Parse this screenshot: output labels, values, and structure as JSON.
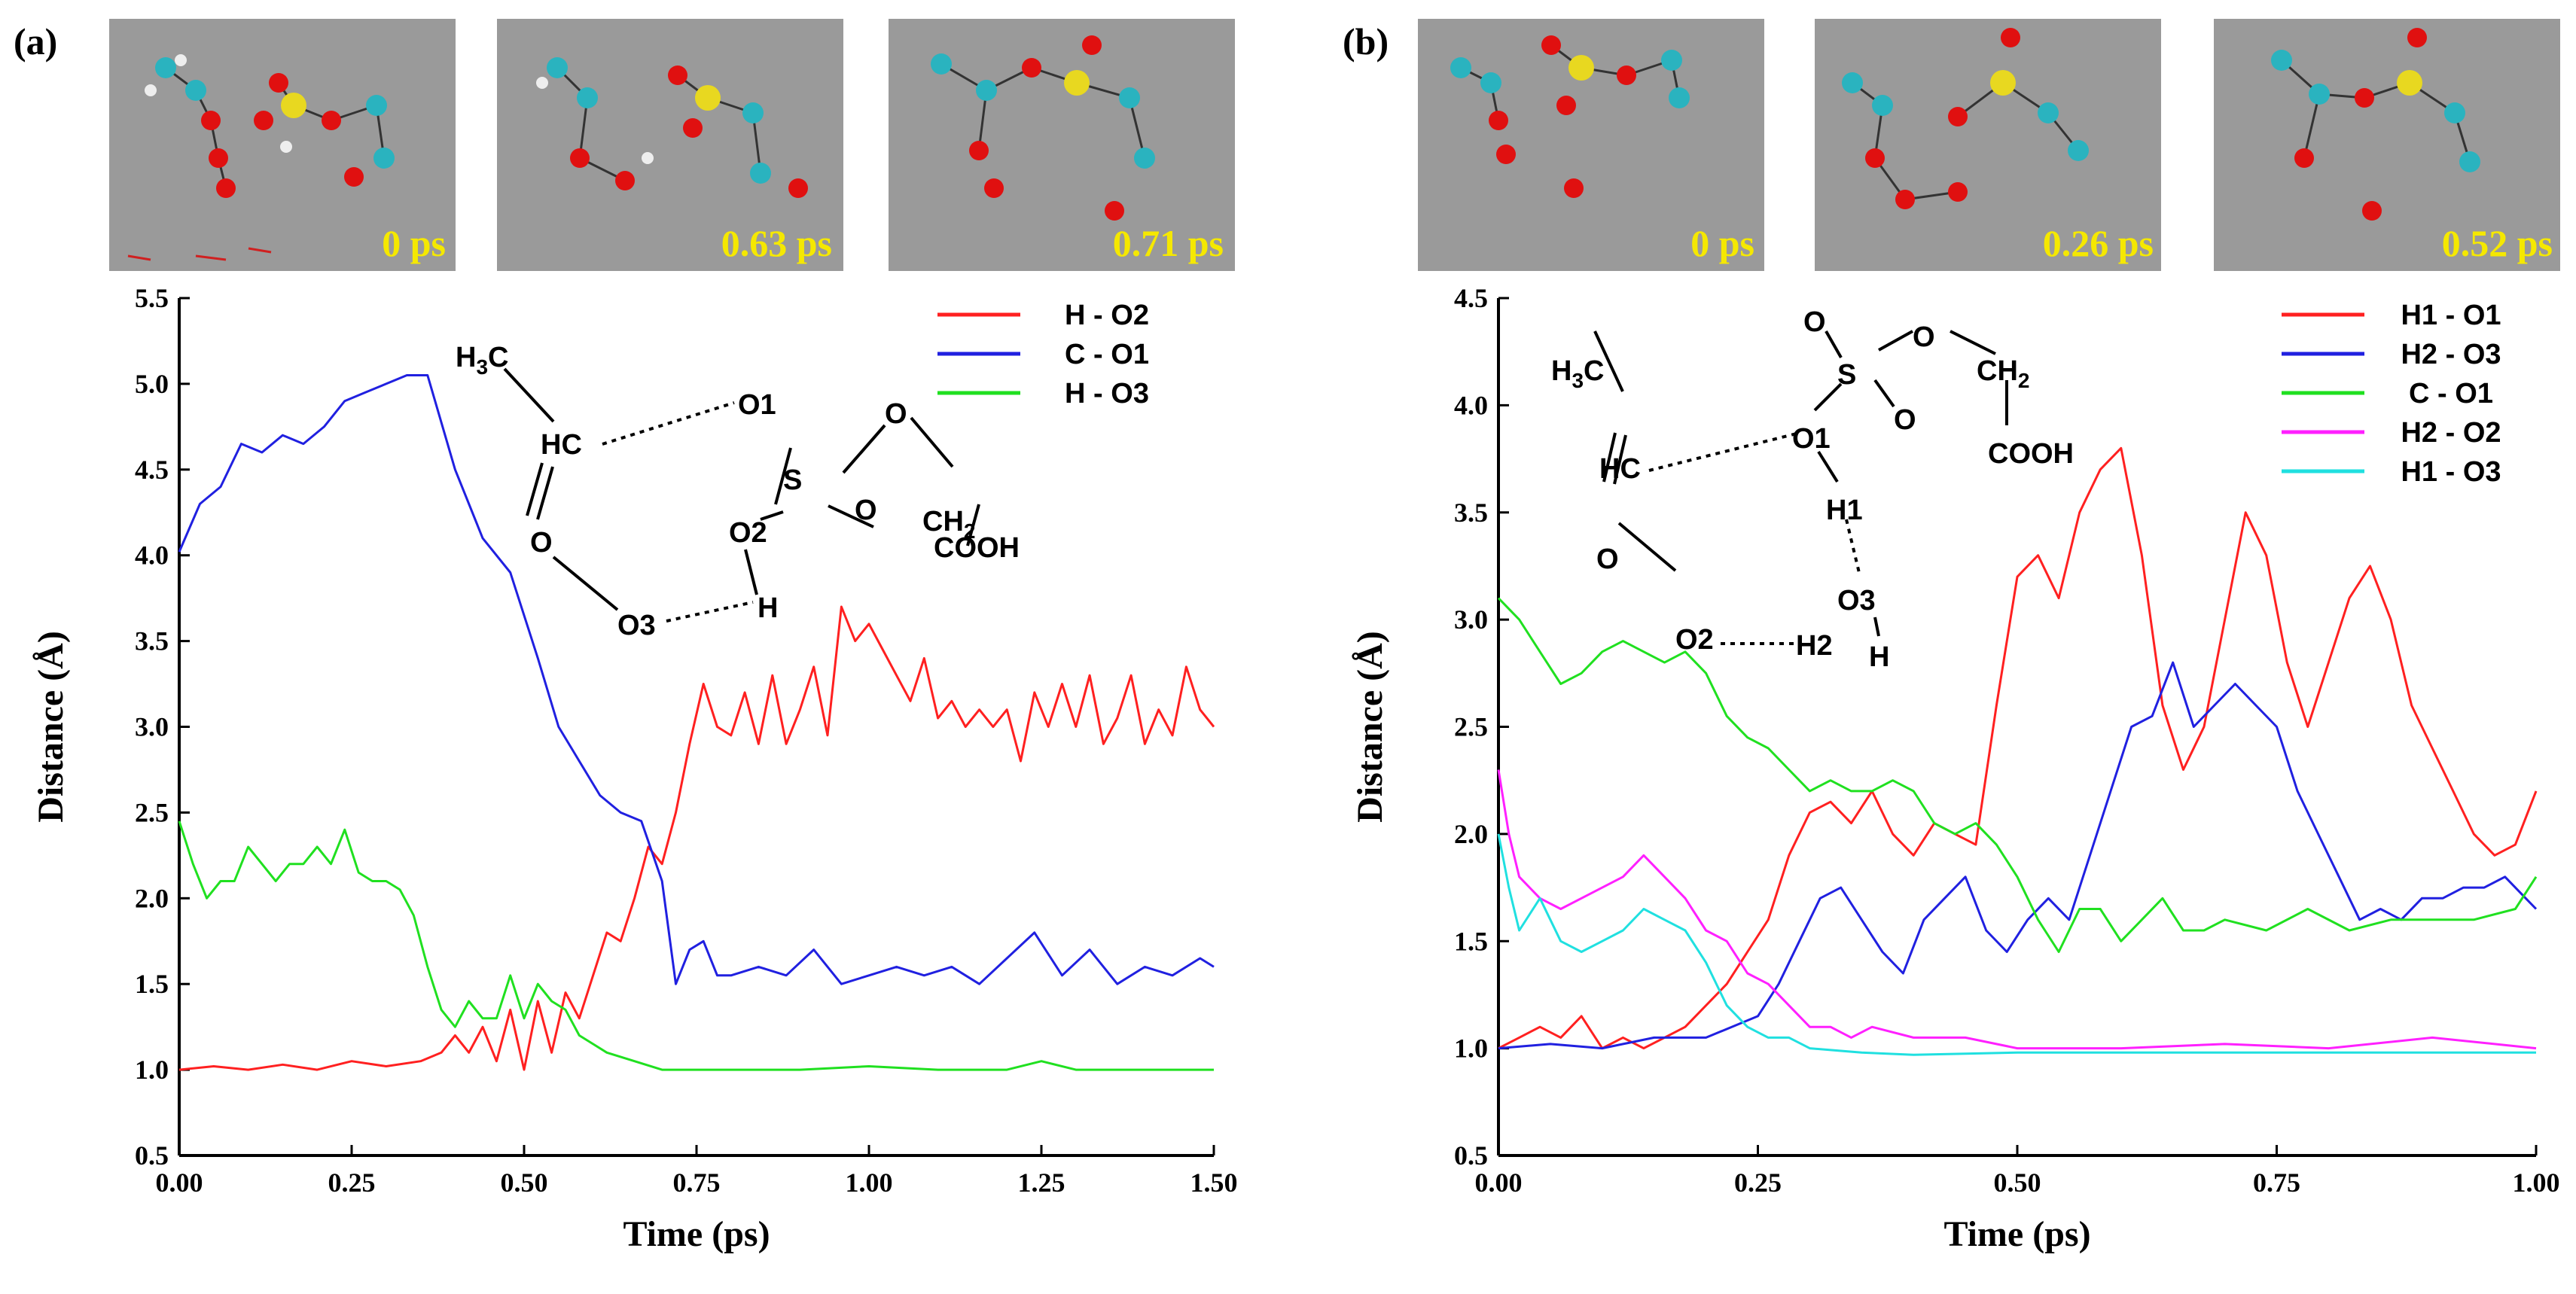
{
  "panels": [
    {
      "id": "a",
      "label": "(a)",
      "snapshots": [
        {
          "time": "0 ps"
        },
        {
          "time": "0.63 ps"
        },
        {
          "time": "0.71 ps"
        }
      ],
      "scheme": {
        "texts": [
          "H3C",
          "HC",
          "O",
          "O3",
          "O2",
          "H",
          "O1",
          "S",
          "O",
          "O",
          "CH2",
          "COOH"
        ]
      }
    },
    {
      "id": "b",
      "label": "(b)",
      "snapshots": [
        {
          "time": "0 ps"
        },
        {
          "time": "0.26 ps"
        },
        {
          "time": "0.52 ps"
        }
      ],
      "scheme": {
        "texts": [
          "H3C",
          "HC",
          "O",
          "O2",
          "H2",
          "O3",
          "H",
          "H1",
          "O1",
          "S",
          "O",
          "O",
          "O",
          "CH2",
          "COOH"
        ]
      }
    }
  ],
  "chart_data": [
    {
      "type": "line",
      "panel": "(a)",
      "xlabel": "Time (ps)",
      "ylabel": "Distance (Å)",
      "xlim": [
        0,
        1.5
      ],
      "ylim": [
        0.5,
        5.5
      ],
      "xticks": [
        "0.00",
        "0.25",
        "0.50",
        "0.75",
        "1.00",
        "1.25",
        "1.50"
      ],
      "yticks": [
        "0.5",
        "1.0",
        "1.5",
        "2.0",
        "2.5",
        "3.0",
        "3.5",
        "4.0",
        "4.5",
        "5.0",
        "5.5"
      ],
      "legend_position": "top-right",
      "series": [
        {
          "name": "H - O2",
          "color": "#ff2020",
          "x": [
            0,
            0.05,
            0.1,
            0.15,
            0.2,
            0.25,
            0.3,
            0.35,
            0.38,
            0.4,
            0.42,
            0.44,
            0.46,
            0.48,
            0.5,
            0.52,
            0.54,
            0.56,
            0.58,
            0.6,
            0.62,
            0.64,
            0.66,
            0.68,
            0.7,
            0.72,
            0.74,
            0.76,
            0.78,
            0.8,
            0.82,
            0.84,
            0.86,
            0.88,
            0.9,
            0.92,
            0.94,
            0.96,
            0.98,
            1.0,
            1.02,
            1.04,
            1.06,
            1.08,
            1.1,
            1.12,
            1.14,
            1.16,
            1.18,
            1.2,
            1.22,
            1.24,
            1.26,
            1.28,
            1.3,
            1.32,
            1.34,
            1.36,
            1.38,
            1.4,
            1.42,
            1.44,
            1.46,
            1.48,
            1.5
          ],
          "values": [
            1.0,
            1.02,
            1.0,
            1.03,
            1.0,
            1.05,
            1.02,
            1.05,
            1.1,
            1.2,
            1.1,
            1.25,
            1.05,
            1.35,
            1.0,
            1.4,
            1.1,
            1.45,
            1.3,
            1.55,
            1.8,
            1.75,
            2.0,
            2.3,
            2.2,
            2.5,
            2.9,
            3.25,
            3.0,
            2.95,
            3.2,
            2.9,
            3.3,
            2.9,
            3.1,
            3.35,
            2.95,
            3.7,
            3.5,
            3.6,
            3.45,
            3.3,
            3.15,
            3.4,
            3.05,
            3.15,
            3.0,
            3.1,
            3.0,
            3.1,
            2.8,
            3.2,
            3.0,
            3.25,
            3.0,
            3.3,
            2.9,
            3.05,
            3.3,
            2.9,
            3.1,
            2.95,
            3.35,
            3.1,
            3.0
          ]
        },
        {
          "name": "C - O1",
          "color": "#2020e0",
          "x": [
            0,
            0.03,
            0.06,
            0.09,
            0.12,
            0.15,
            0.18,
            0.21,
            0.24,
            0.27,
            0.3,
            0.33,
            0.36,
            0.4,
            0.44,
            0.48,
            0.52,
            0.55,
            0.58,
            0.61,
            0.64,
            0.67,
            0.7,
            0.72,
            0.74,
            0.76,
            0.78,
            0.8,
            0.84,
            0.88,
            0.92,
            0.96,
            1.0,
            1.04,
            1.08,
            1.12,
            1.16,
            1.2,
            1.24,
            1.28,
            1.32,
            1.36,
            1.4,
            1.44,
            1.48,
            1.5
          ],
          "values": [
            4.02,
            4.3,
            4.4,
            4.65,
            4.6,
            4.7,
            4.65,
            4.75,
            4.9,
            4.95,
            5.0,
            5.05,
            5.05,
            4.5,
            4.1,
            3.9,
            3.4,
            3.0,
            2.8,
            2.6,
            2.5,
            2.45,
            2.1,
            1.5,
            1.7,
            1.75,
            1.55,
            1.55,
            1.6,
            1.55,
            1.7,
            1.5,
            1.55,
            1.6,
            1.55,
            1.6,
            1.5,
            1.65,
            1.8,
            1.55,
            1.7,
            1.5,
            1.6,
            1.55,
            1.65,
            1.6
          ]
        },
        {
          "name": "H - O3",
          "color": "#20e020",
          "x": [
            0,
            0.02,
            0.04,
            0.06,
            0.08,
            0.1,
            0.12,
            0.14,
            0.16,
            0.18,
            0.2,
            0.22,
            0.24,
            0.26,
            0.28,
            0.3,
            0.32,
            0.34,
            0.36,
            0.38,
            0.4,
            0.42,
            0.44,
            0.46,
            0.48,
            0.5,
            0.52,
            0.54,
            0.56,
            0.58,
            0.6,
            0.62,
            0.66,
            0.7,
            0.75,
            0.8,
            0.9,
            1.0,
            1.1,
            1.2,
            1.25,
            1.3,
            1.4,
            1.5
          ],
          "values": [
            2.45,
            2.2,
            2.0,
            2.1,
            2.1,
            2.3,
            2.2,
            2.1,
            2.2,
            2.2,
            2.3,
            2.2,
            2.4,
            2.15,
            2.1,
            2.1,
            2.05,
            1.9,
            1.6,
            1.35,
            1.25,
            1.4,
            1.3,
            1.3,
            1.55,
            1.3,
            1.5,
            1.4,
            1.35,
            1.2,
            1.15,
            1.1,
            1.05,
            1.0,
            1.0,
            1.0,
            1.0,
            1.02,
            1.0,
            1.0,
            1.05,
            1.0,
            1.0,
            1.0
          ]
        }
      ]
    },
    {
      "type": "line",
      "panel": "(b)",
      "xlabel": "Time (ps)",
      "ylabel": "Distance (Å)",
      "xlim": [
        0,
        1.0
      ],
      "ylim": [
        0.5,
        4.5
      ],
      "xticks": [
        "0.00",
        "0.25",
        "0.50",
        "0.75",
        "1.00"
      ],
      "yticks": [
        "0.5",
        "1.0",
        "1.5",
        "2.0",
        "2.5",
        "3.0",
        "3.5",
        "4.0",
        "4.5"
      ],
      "legend_position": "top-right",
      "series": [
        {
          "name": "H1 - O1",
          "color": "#ff2020",
          "x": [
            0,
            0.02,
            0.04,
            0.06,
            0.08,
            0.1,
            0.12,
            0.14,
            0.16,
            0.18,
            0.2,
            0.22,
            0.24,
            0.26,
            0.28,
            0.3,
            0.32,
            0.34,
            0.36,
            0.38,
            0.4,
            0.42,
            0.44,
            0.46,
            0.48,
            0.5,
            0.52,
            0.54,
            0.56,
            0.58,
            0.6,
            0.62,
            0.64,
            0.66,
            0.68,
            0.7,
            0.72,
            0.74,
            0.76,
            0.78,
            0.8,
            0.82,
            0.84,
            0.86,
            0.88,
            0.9,
            0.92,
            0.94,
            0.96,
            0.98,
            1.0
          ],
          "values": [
            1.0,
            1.05,
            1.1,
            1.05,
            1.15,
            1.0,
            1.05,
            1.0,
            1.05,
            1.1,
            1.2,
            1.3,
            1.45,
            1.6,
            1.9,
            2.1,
            2.15,
            2.05,
            2.2,
            2.0,
            1.9,
            2.05,
            2.0,
            1.95,
            2.6,
            3.2,
            3.3,
            3.1,
            3.5,
            3.7,
            3.8,
            3.3,
            2.6,
            2.3,
            2.5,
            3.0,
            3.5,
            3.3,
            2.8,
            2.5,
            2.8,
            3.1,
            3.25,
            3.0,
            2.6,
            2.4,
            2.2,
            2.0,
            1.9,
            1.95,
            2.2
          ]
        },
        {
          "name": "H2 - O3",
          "color": "#2020e0",
          "x": [
            0,
            0.05,
            0.1,
            0.15,
            0.2,
            0.25,
            0.27,
            0.29,
            0.31,
            0.33,
            0.35,
            0.37,
            0.39,
            0.41,
            0.43,
            0.45,
            0.47,
            0.49,
            0.51,
            0.53,
            0.55,
            0.57,
            0.59,
            0.61,
            0.63,
            0.65,
            0.67,
            0.69,
            0.71,
            0.73,
            0.75,
            0.77,
            0.79,
            0.81,
            0.83,
            0.85,
            0.87,
            0.89,
            0.91,
            0.93,
            0.95,
            0.97,
            0.99,
            1.0
          ],
          "values": [
            1.0,
            1.02,
            1.0,
            1.05,
            1.05,
            1.15,
            1.3,
            1.5,
            1.7,
            1.75,
            1.6,
            1.45,
            1.35,
            1.6,
            1.7,
            1.8,
            1.55,
            1.45,
            1.6,
            1.7,
            1.6,
            1.9,
            2.2,
            2.5,
            2.55,
            2.8,
            2.5,
            2.6,
            2.7,
            2.6,
            2.5,
            2.2,
            2.0,
            1.8,
            1.6,
            1.65,
            1.6,
            1.7,
            1.7,
            1.75,
            1.75,
            1.8,
            1.7,
            1.65
          ]
        },
        {
          "name": "C - O1",
          "color": "#20e020",
          "x": [
            0,
            0.02,
            0.04,
            0.06,
            0.08,
            0.1,
            0.12,
            0.14,
            0.16,
            0.18,
            0.2,
            0.22,
            0.24,
            0.26,
            0.28,
            0.3,
            0.32,
            0.34,
            0.36,
            0.38,
            0.4,
            0.42,
            0.44,
            0.46,
            0.48,
            0.5,
            0.52,
            0.54,
            0.56,
            0.58,
            0.6,
            0.62,
            0.64,
            0.66,
            0.68,
            0.7,
            0.74,
            0.78,
            0.82,
            0.86,
            0.9,
            0.94,
            0.98,
            1.0
          ],
          "values": [
            3.1,
            3.0,
            2.85,
            2.7,
            2.75,
            2.85,
            2.9,
            2.85,
            2.8,
            2.85,
            2.75,
            2.55,
            2.45,
            2.4,
            2.3,
            2.2,
            2.25,
            2.2,
            2.2,
            2.25,
            2.2,
            2.05,
            2.0,
            2.05,
            1.95,
            1.8,
            1.6,
            1.45,
            1.65,
            1.65,
            1.5,
            1.6,
            1.7,
            1.55,
            1.55,
            1.6,
            1.55,
            1.65,
            1.55,
            1.6,
            1.6,
            1.6,
            1.65,
            1.8
          ]
        },
        {
          "name": "H2 - O2",
          "color": "#ff20ff",
          "x": [
            0,
            0.01,
            0.02,
            0.04,
            0.06,
            0.08,
            0.1,
            0.12,
            0.14,
            0.16,
            0.18,
            0.2,
            0.22,
            0.24,
            0.26,
            0.28,
            0.3,
            0.32,
            0.34,
            0.36,
            0.4,
            0.45,
            0.5,
            0.6,
            0.7,
            0.8,
            0.9,
            1.0
          ],
          "values": [
            2.3,
            2.0,
            1.8,
            1.7,
            1.65,
            1.7,
            1.75,
            1.8,
            1.9,
            1.8,
            1.7,
            1.55,
            1.5,
            1.35,
            1.3,
            1.2,
            1.1,
            1.1,
            1.05,
            1.1,
            1.05,
            1.05,
            1.0,
            1.0,
            1.02,
            1.0,
            1.05,
            1.0
          ]
        },
        {
          "name": "H1 - O3",
          "color": "#20e0e0",
          "x": [
            0,
            0.01,
            0.02,
            0.04,
            0.06,
            0.08,
            0.1,
            0.12,
            0.14,
            0.16,
            0.18,
            0.2,
            0.22,
            0.24,
            0.26,
            0.28,
            0.3,
            0.35,
            0.4,
            0.5,
            0.6,
            0.7,
            0.8,
            0.9,
            1.0
          ],
          "values": [
            2.0,
            1.75,
            1.55,
            1.7,
            1.5,
            1.45,
            1.5,
            1.55,
            1.65,
            1.6,
            1.55,
            1.4,
            1.2,
            1.1,
            1.05,
            1.05,
            1.0,
            0.98,
            0.97,
            0.98,
            0.98,
            0.98,
            0.98,
            0.98,
            0.98
          ]
        }
      ]
    }
  ]
}
